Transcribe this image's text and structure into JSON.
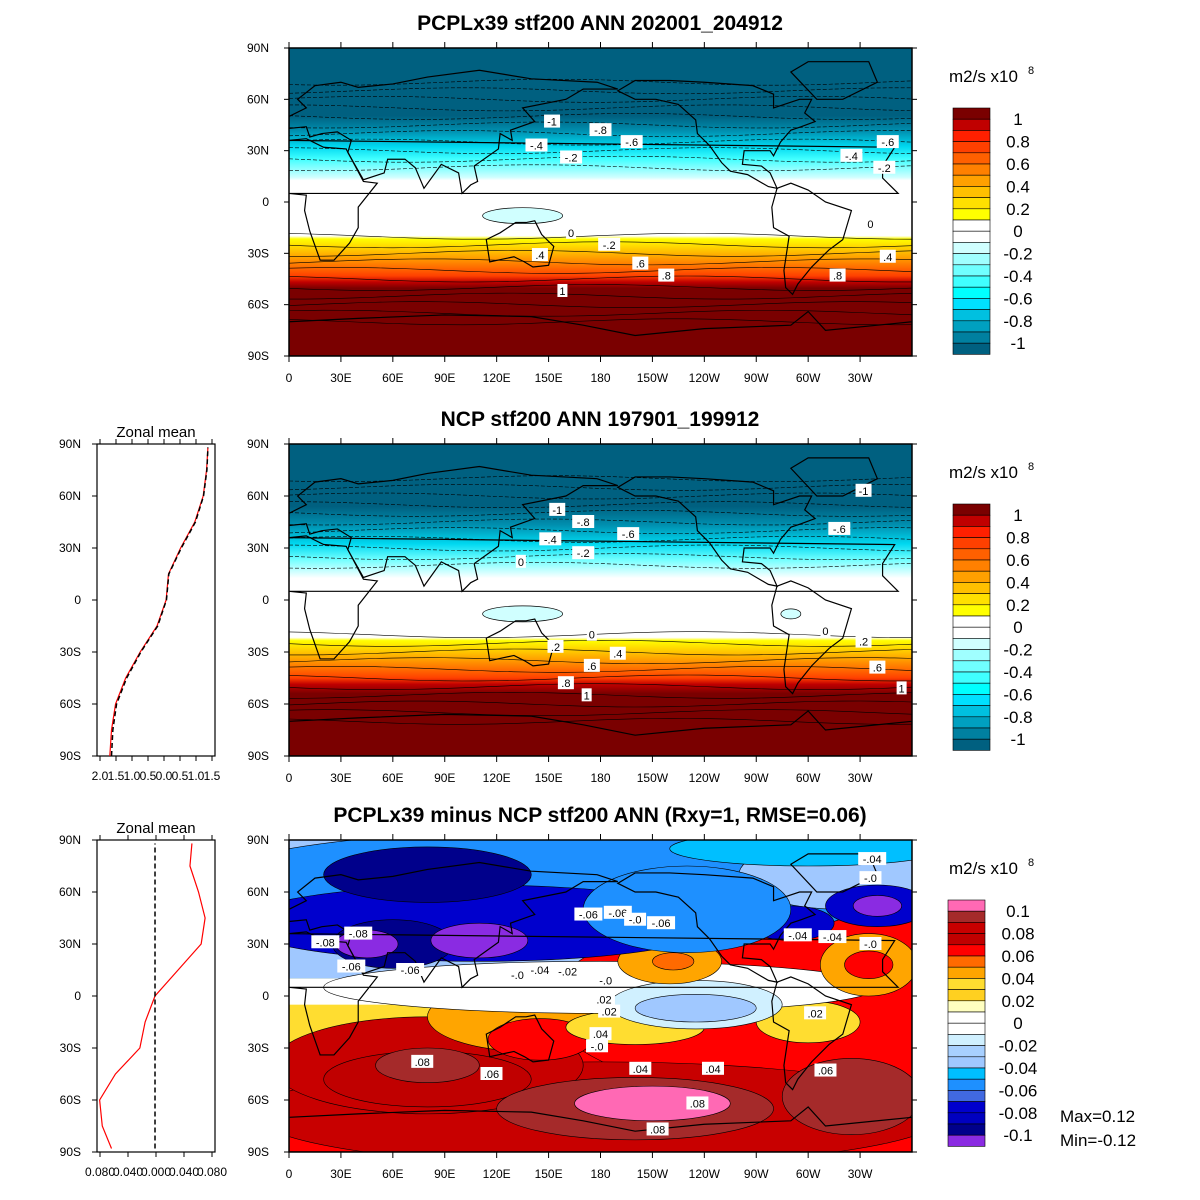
{
  "chart_data": [
    {
      "type": "heatmap",
      "title": "PCPLx39 stf200 ANN 202001_204912",
      "units": "m2/s x10",
      "units_exponent": "8",
      "colorbar_labels": [
        "1",
        "0.8",
        "0.6",
        "0.4",
        "0.2",
        "0",
        "-0.2",
        "-0.4",
        "-0.6",
        "-0.8",
        "-1"
      ],
      "colorbar_colors": [
        "#7a0000",
        "#c00000",
        "#ff2000",
        "#ff4000",
        "#ff6000",
        "#ff8000",
        "#ffa000",
        "#ffc000",
        "#ffe000",
        "#ffff00",
        "#ffffff",
        "#ffffff",
        "#d0ffff",
        "#a0ffff",
        "#70ffff",
        "#40ffff",
        "#00ffff",
        "#00e0ff",
        "#00c0e0",
        "#00a0c0",
        "#0080a0",
        "#006080"
      ],
      "y_ticks": [
        "90N",
        "60N",
        "30N",
        "0",
        "30S",
        "60S",
        "90S"
      ],
      "x_ticks": [
        "0",
        "30E",
        "60E",
        "90E",
        "120E",
        "150E",
        "180",
        "150W",
        "120W",
        "90W",
        "60W",
        "30W"
      ],
      "contour_labels": [
        {
          "text": "-1",
          "lon": 152,
          "lat": 47
        },
        {
          "text": "-.8",
          "lon": 180,
          "lat": 42
        },
        {
          "text": "-.6",
          "lon": 198,
          "lat": 35
        },
        {
          "text": "-.4",
          "lon": 143,
          "lat": 33
        },
        {
          "text": "-.2",
          "lon": 163,
          "lat": 26
        },
        {
          "text": "-.4",
          "lon": 325,
          "lat": 27
        },
        {
          "text": "-.6",
          "lon": 346,
          "lat": 35
        },
        {
          "text": "-.2",
          "lon": 344,
          "lat": 20
        },
        {
          "text": "0",
          "lon": 163,
          "lat": -18
        },
        {
          "text": "0",
          "lon": 336,
          "lat": -13
        },
        {
          "text": "-.2",
          "lon": 185,
          "lat": -25
        },
        {
          "text": ".4",
          "lon": 145,
          "lat": -31
        },
        {
          "text": ".6",
          "lon": 203,
          "lat": -36
        },
        {
          "text": ".8",
          "lon": 218,
          "lat": -43
        },
        {
          "text": "1",
          "lon": 158,
          "lat": -52
        },
        {
          "text": ".8",
          "lon": 317,
          "lat": -43
        },
        {
          "text": ".4",
          "lon": 346,
          "lat": -32
        }
      ]
    },
    {
      "type": "heatmap",
      "title": "NCP stf200 ANN 197901_199912",
      "units": "m2/s x10",
      "units_exponent": "8",
      "colorbar_labels": [
        "1",
        "0.8",
        "0.6",
        "0.4",
        "0.2",
        "0",
        "-0.2",
        "-0.4",
        "-0.6",
        "-0.8",
        "-1"
      ],
      "colorbar_colors": [
        "#7a0000",
        "#c00000",
        "#ff2000",
        "#ff4000",
        "#ff6000",
        "#ff8000",
        "#ffa000",
        "#ffc000",
        "#ffe000",
        "#ffff00",
        "#ffffff",
        "#ffffff",
        "#d0ffff",
        "#a0ffff",
        "#70ffff",
        "#40ffff",
        "#00ffff",
        "#00e0ff",
        "#00c0e0",
        "#00a0c0",
        "#0080a0",
        "#006080"
      ],
      "y_ticks": [
        "90N",
        "60N",
        "30N",
        "0",
        "30S",
        "60S",
        "90S"
      ],
      "x_ticks": [
        "0",
        "30E",
        "60E",
        "90E",
        "120E",
        "150E",
        "180",
        "150W",
        "120W",
        "90W",
        "60W",
        "30W"
      ],
      "contour_labels": [
        {
          "text": "-1",
          "lon": 332,
          "lat": 63
        },
        {
          "text": "-1",
          "lon": 155,
          "lat": 52
        },
        {
          "text": "-.8",
          "lon": 170,
          "lat": 45
        },
        {
          "text": "-.6",
          "lon": 196,
          "lat": 38
        },
        {
          "text": "-.4",
          "lon": 151,
          "lat": 35
        },
        {
          "text": "-.2",
          "lon": 170,
          "lat": 27
        },
        {
          "text": "0",
          "lon": 134,
          "lat": 22
        },
        {
          "text": "-.6",
          "lon": 318,
          "lat": 41
        },
        {
          "text": "0",
          "lon": 175,
          "lat": -20
        },
        {
          "text": "0",
          "lon": 310,
          "lat": -18
        },
        {
          "text": ".2",
          "lon": 154,
          "lat": -27
        },
        {
          "text": ".4",
          "lon": 190,
          "lat": -31
        },
        {
          "text": ".6",
          "lon": 175,
          "lat": -38
        },
        {
          "text": ".8",
          "lon": 160,
          "lat": -48
        },
        {
          "text": "1",
          "lon": 172,
          "lat": -55
        },
        {
          "text": ".2",
          "lon": 332,
          "lat": -24
        },
        {
          "text": ".6",
          "lon": 340,
          "lat": -39
        },
        {
          "text": "1",
          "lon": 354,
          "lat": -51
        }
      ],
      "zonal_mean": {
        "title": "Zonal mean",
        "x_tick_labels": [
          "2.0",
          "1.5",
          "1.0",
          "0.5",
          "0.0",
          "0.5",
          "1.0",
          "1.5"
        ],
        "xlim": [
          -2.0,
          1.5
        ],
        "lat": [
          -90,
          -75,
          -60,
          -45,
          -30,
          -15,
          0,
          15,
          30,
          45,
          60,
          75,
          88
        ],
        "series": [
          {
            "style": "red solid",
            "values": [
              -1.62,
              -1.57,
              -1.45,
              -1.15,
              -0.72,
              -0.22,
              0.05,
              0.12,
              0.48,
              0.9,
              1.15,
              1.25,
              1.29
            ]
          },
          {
            "style": "black dashed",
            "values": [
              -1.57,
              -1.53,
              -1.42,
              -1.12,
              -0.7,
              -0.2,
              0.06,
              0.13,
              0.5,
              0.92,
              1.16,
              1.26,
              1.29
            ]
          }
        ]
      }
    },
    {
      "type": "heatmap",
      "title": "PCPLx39 minus NCP stf200 ANN (Rxy=1, RMSE=0.06)",
      "units": "m2/s x10",
      "units_exponent": "8",
      "max_label": "Max=0.12",
      "min_label": "Min=-0.12",
      "colorbar_labels": [
        "0.1",
        "0.08",
        "0.06",
        "0.04",
        "0.02",
        "0",
        "-0.02",
        "-0.04",
        "-0.06",
        "-0.08",
        "-0.1"
      ],
      "colorbar_colors": [
        "#ff69b4",
        "#a52a2a",
        "#c80000",
        "#c00000",
        "#ff0000",
        "#ff6a00",
        "#ffa500",
        "#ffdd30",
        "#ffd020",
        "#ffffc0",
        "#ffffff",
        "#ffffff",
        "#d0f0ff",
        "#a8d0ff",
        "#a0c8ff",
        "#00bfff",
        "#1e90ff",
        "#4169e1",
        "#0000cd",
        "#0000c0",
        "#00008b",
        "#8a2be2"
      ],
      "y_ticks": [
        "90N",
        "60N",
        "30N",
        "0",
        "30S",
        "60S",
        "90S"
      ],
      "x_ticks": [
        "0",
        "30E",
        "60E",
        "90E",
        "120E",
        "150E",
        "180",
        "150W",
        "120W",
        "90W",
        "60W",
        "30W"
      ],
      "contour_labels": [
        {
          "text": "-.06",
          "lon": 173,
          "lat": 47
        },
        {
          "text": "-.06",
          "lon": 190,
          "lat": 48
        },
        {
          "text": "-.0",
          "lon": 200,
          "lat": 44
        },
        {
          "text": "-.06",
          "lon": 215,
          "lat": 42
        },
        {
          "text": "-.08",
          "lon": 21,
          "lat": 31
        },
        {
          "text": "-.08",
          "lon": 40,
          "lat": 36
        },
        {
          "text": "-.06",
          "lon": 36,
          "lat": 17
        },
        {
          "text": "-.06",
          "lon": 70,
          "lat": 15
        },
        {
          "text": "-.0",
          "lon": 132,
          "lat": 12
        },
        {
          "text": "-.04",
          "lon": 145,
          "lat": 15
        },
        {
          "text": "-.02",
          "lon": 161,
          "lat": 14
        },
        {
          "text": "-.0",
          "lon": 183,
          "lat": 9
        },
        {
          "text": "-.04",
          "lon": 294,
          "lat": 35
        },
        {
          "text": "-.04",
          "lon": 314,
          "lat": 34
        },
        {
          "text": "-.0",
          "lon": 336,
          "lat": 30
        },
        {
          "text": "-.04",
          "lon": 337,
          "lat": 79
        },
        {
          "text": "-.0",
          "lon": 336,
          "lat": 68
        },
        {
          "text": ".02",
          "lon": 182,
          "lat": -2
        },
        {
          "text": ".02",
          "lon": 185,
          "lat": -9
        },
        {
          "text": ".04",
          "lon": 180,
          "lat": -22
        },
        {
          "text": "-.0",
          "lon": 178,
          "lat": -29
        },
        {
          "text": ".02",
          "lon": 304,
          "lat": -10
        },
        {
          "text": ".08",
          "lon": 77,
          "lat": -38
        },
        {
          "text": ".06",
          "lon": 117,
          "lat": -45
        },
        {
          "text": ".04",
          "lon": 203,
          "lat": -42
        },
        {
          "text": ".04",
          "lon": 245,
          "lat": -42
        },
        {
          "text": ".06",
          "lon": 310,
          "lat": -43
        },
        {
          "text": ".08",
          "lon": 236,
          "lat": -62
        },
        {
          "text": ".08",
          "lon": 213,
          "lat": -77
        }
      ],
      "zonal_mean": {
        "title": "Zonal mean",
        "x_tick_labels": [
          "0.080",
          "0.040",
          "0.000",
          "0.040",
          "0.080"
        ],
        "xlim": [
          -0.088,
          0.091
        ],
        "lat": [
          -88,
          -75,
          -60,
          -45,
          -30,
          -15,
          0,
          15,
          30,
          45,
          60,
          75,
          88
        ],
        "series": [
          {
            "style": "red solid",
            "values": [
              -0.066,
              -0.08,
              -0.084,
              -0.06,
              -0.023,
              -0.015,
              0.0,
              0.035,
              0.07,
              0.076,
              0.066,
              0.053,
              0.056
            ]
          },
          {
            "style": "black dashed",
            "values": [
              0,
              0,
              0,
              0,
              0,
              0,
              0,
              0,
              0,
              0,
              0,
              0,
              0
            ]
          }
        ]
      }
    }
  ]
}
